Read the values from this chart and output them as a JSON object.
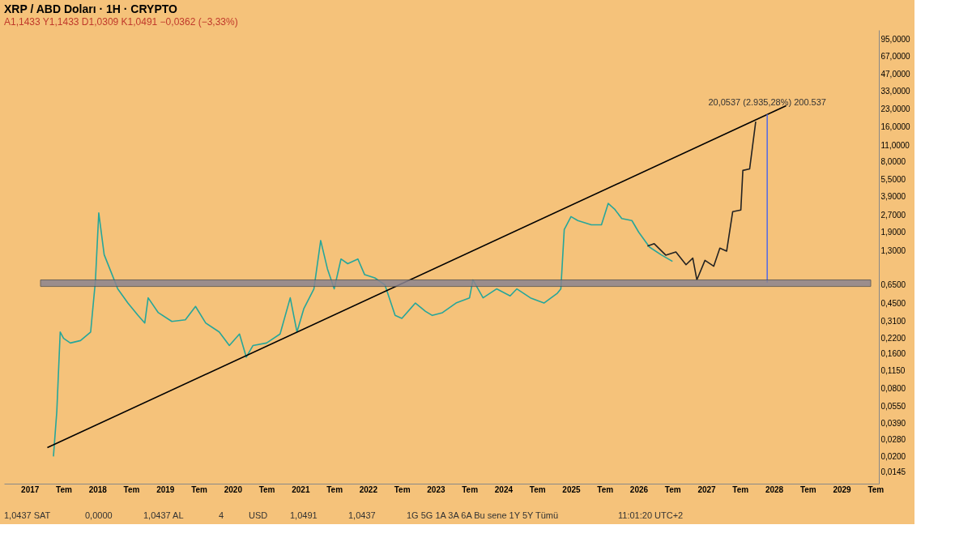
{
  "chart_data": {
    "type": "line",
    "title": "XRP / ABD Doları · 1H · CRYPTO",
    "subtitle": "A1,1433 Y1,1433 D1,0309 K1,0491 −0,0362 (−3,33%)",
    "log": "y",
    "grid": false,
    "line_style": "solid",
    "marker": "none",
    "xlim": [
      2016.62,
      2029.55
    ],
    "ylim": [
      0.0115,
      115
    ],
    "xticks": [
      2017,
      {
        "value": 2017.5,
        "label": "Tem"
      },
      2018,
      {
        "value": 2018.5,
        "label": "Tem"
      },
      2019,
      {
        "value": 2019.5,
        "label": "Tem"
      },
      2020,
      {
        "value": 2020.5,
        "label": "Tem"
      },
      2021,
      {
        "value": 2021.5,
        "label": "Tem"
      },
      2022,
      {
        "value": 2022.5,
        "label": "Tem"
      },
      2023,
      {
        "value": 2023.5,
        "label": "Tem"
      },
      2024,
      {
        "value": 2024.5,
        "label": "Tem"
      },
      2025,
      {
        "value": 2025.5,
        "label": "Tem"
      },
      2026,
      {
        "value": 2026.5,
        "label": "Tem"
      },
      2027,
      {
        "value": 2027.5,
        "label": "Tem"
      },
      2028,
      {
        "value": 2028.5,
        "label": "Tem"
      },
      2029,
      {
        "value": 2029.5,
        "label": "Tem"
      }
    ],
    "yticks": [
      {
        "value": 95,
        "label": "95,0000"
      },
      {
        "value": 67,
        "label": "67,0000"
      },
      {
        "value": 47,
        "label": "47,0000"
      },
      {
        "value": 33,
        "label": "33,0000"
      },
      {
        "value": 23,
        "label": "23,0000"
      },
      {
        "value": 16,
        "label": "16,0000"
      },
      {
        "value": 11,
        "label": "11,0000"
      },
      {
        "value": 8,
        "label": "8,0000"
      },
      {
        "value": 5.5,
        "label": "5,5000"
      },
      {
        "value": 3.9,
        "label": "3,9000"
      },
      {
        "value": 2.7,
        "label": "2,7000"
      },
      {
        "value": 1.9,
        "label": "1,9000"
      },
      {
        "value": 1.3,
        "label": "1,3000"
      },
      {
        "value": 0.65,
        "label": "0,6500"
      },
      {
        "value": 0.45,
        "label": "0,4500"
      },
      {
        "value": 0.31,
        "label": "0,3100"
      },
      {
        "value": 0.22,
        "label": "0,2200"
      },
      {
        "value": 0.16,
        "label": "0,1600"
      },
      {
        "value": 0.115,
        "label": "0,1150"
      },
      {
        "value": 0.08,
        "label": "0,0800"
      },
      {
        "value": 0.055,
        "label": "0,0550"
      },
      {
        "value": 0.039,
        "label": "0,0390"
      },
      {
        "value": 0.028,
        "label": "0,0280"
      },
      {
        "value": 0.02,
        "label": "0,0200"
      },
      {
        "value": 0.0145,
        "label": "0,0145"
      }
    ],
    "series": [
      {
        "color": "#26a69a",
        "x": [
          2017.35,
          2017.4,
          2017.45,
          2017.5,
          2017.6,
          2017.75,
          2017.9,
          2017.97,
          2018.02,
          2018.1,
          2018.2,
          2018.3,
          2018.45,
          2018.6,
          2018.7,
          2018.75,
          2018.9,
          2019.1,
          2019.3,
          2019.45,
          2019.6,
          2019.8,
          2019.95,
          2020.1,
          2020.2,
          2020.3,
          2020.5,
          2020.7,
          2020.85,
          2020.95,
          2021.05,
          2021.2,
          2021.3,
          2021.4,
          2021.5,
          2021.6,
          2021.7,
          2021.85,
          2021.95,
          2022.1,
          2022.25,
          2022.4,
          2022.5,
          2022.7,
          2022.85,
          2022.95,
          2023.1,
          2023.3,
          2023.5,
          2023.55,
          2023.7,
          2023.9,
          2024.1,
          2024.2,
          2024.4,
          2024.6,
          2024.8,
          2024.85,
          2024.9,
          2025.0,
          2025.1,
          2025.3,
          2025.45,
          2025.55,
          2025.65,
          2025.75,
          2025.9,
          2026.0,
          2026.16,
          2026.33,
          2026.5
        ],
        "values": [
          0.02,
          0.05,
          0.25,
          0.22,
          0.2,
          0.21,
          0.25,
          0.7,
          2.8,
          1.2,
          0.85,
          0.6,
          0.45,
          0.35,
          0.3,
          0.5,
          0.37,
          0.31,
          0.32,
          0.42,
          0.3,
          0.25,
          0.19,
          0.24,
          0.15,
          0.19,
          0.2,
          0.24,
          0.5,
          0.25,
          0.4,
          0.6,
          1.6,
          0.9,
          0.6,
          1.1,
          1.0,
          1.1,
          0.8,
          0.75,
          0.65,
          0.35,
          0.33,
          0.45,
          0.38,
          0.35,
          0.37,
          0.45,
          0.5,
          0.72,
          0.5,
          0.6,
          0.52,
          0.6,
          0.5,
          0.45,
          0.55,
          0.6,
          2.0,
          2.6,
          2.4,
          2.2,
          2.2,
          3.4,
          3.0,
          2.5,
          2.4,
          1.9,
          1.4,
          1.2,
          1.0491
        ]
      },
      {
        "color": "#000000",
        "x": [
          2017.26,
          2028.18
        ],
        "values": [
          0.0239,
          24.7
        ]
      },
      {
        "color": "#222222",
        "x": [
          2026.13,
          2026.23,
          2026.4,
          2026.55,
          2026.7,
          2026.8,
          2026.86,
          2026.98,
          2027.11,
          2027.2,
          2027.3,
          2027.39,
          2027.51,
          2027.54,
          2027.64,
          2027.73
        ],
        "values": [
          1.43,
          1.5,
          1.19,
          1.27,
          0.98,
          1.12,
          0.72,
          1.07,
          0.95,
          1.37,
          1.29,
          2.88,
          2.97,
          6.64,
          6.84,
          17.9
        ]
      },
      {
        "color": "#5b6ee1",
        "x": [
          2027.9,
          2027.9
        ],
        "values": [
          0.6832,
          20.7369
        ]
      }
    ],
    "bands": [
      {
        "axis": "y",
        "from": 0.63,
        "to": 0.72,
        "color": "#8c8490"
      }
    ],
    "annotations": [
      {
        "text": "20,0537 (2.935,28%) 200.537",
        "x": 2027.9,
        "y": 20.7369
      },
      "1,0437 SAT",
      "0,0000",
      "1,0437 AL",
      "4",
      "USD",
      "1,0491",
      "1,0437",
      "1G 5G 1A 3A 6A Bu sene 1Y 5Y Tümü",
      "11:01:20 UTC+2"
    ]
  }
}
